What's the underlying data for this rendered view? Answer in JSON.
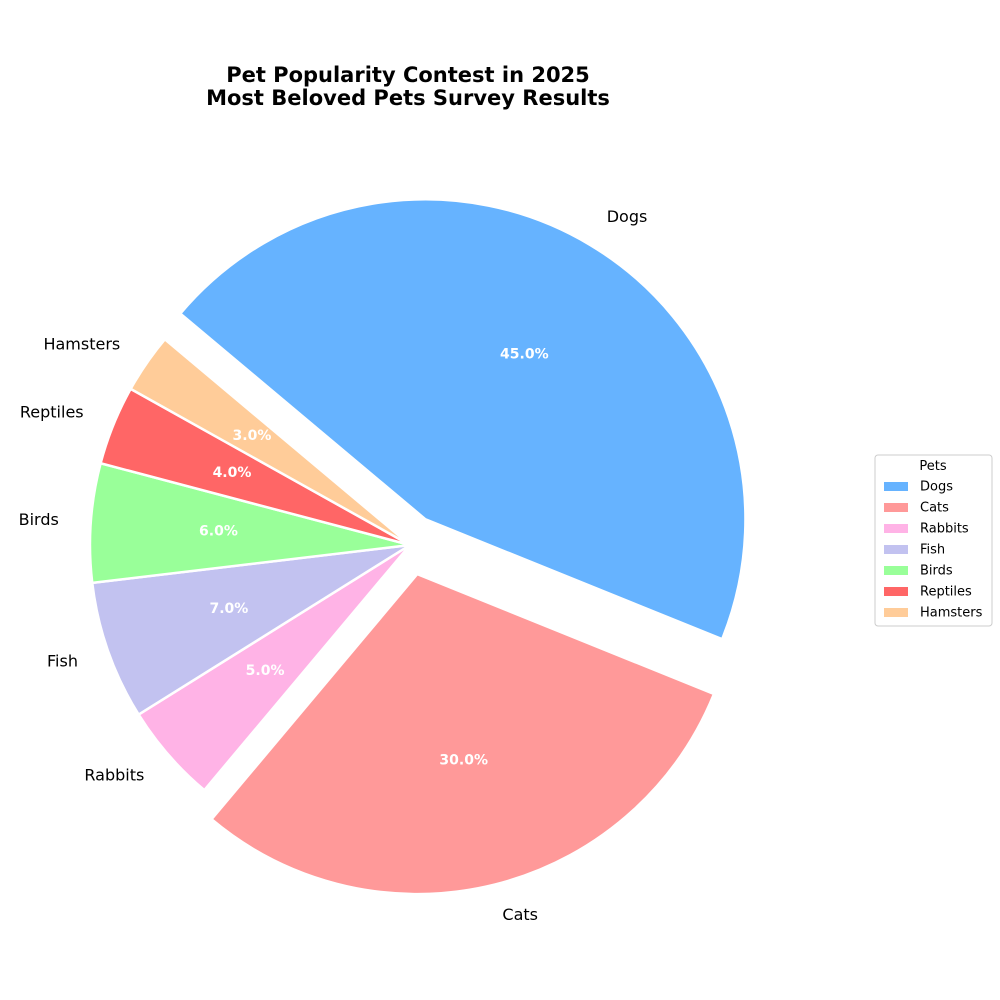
{
  "chart_data": {
    "type": "pie",
    "title_lines": [
      "Pet Popularity Contest in 2025",
      "Most Beloved Pets Survey Results"
    ],
    "categories": [
      "Dogs",
      "Cats",
      "Rabbits",
      "Fish",
      "Birds",
      "Reptiles",
      "Hamsters"
    ],
    "values": [
      45,
      30,
      5,
      7,
      6,
      4,
      3
    ],
    "percent_labels": [
      "45.0%",
      "30.0%",
      "5.0%",
      "7.0%",
      "6.0%",
      "4.0%",
      "3.0%"
    ],
    "colors": [
      "#66b3ff",
      "#ff9999",
      "#ffb3e6",
      "#c2c2f0",
      "#99ff99",
      "#ff6666",
      "#ffcc99"
    ],
    "exploded": [
      "Dogs",
      "Cats"
    ],
    "start_angle_deg": 140,
    "direction": "clockwise",
    "legend": {
      "title": "Pets",
      "position": "right",
      "entries": [
        "Dogs",
        "Cats",
        "Rabbits",
        "Fish",
        "Birds",
        "Reptiles",
        "Hamsters"
      ]
    }
  }
}
